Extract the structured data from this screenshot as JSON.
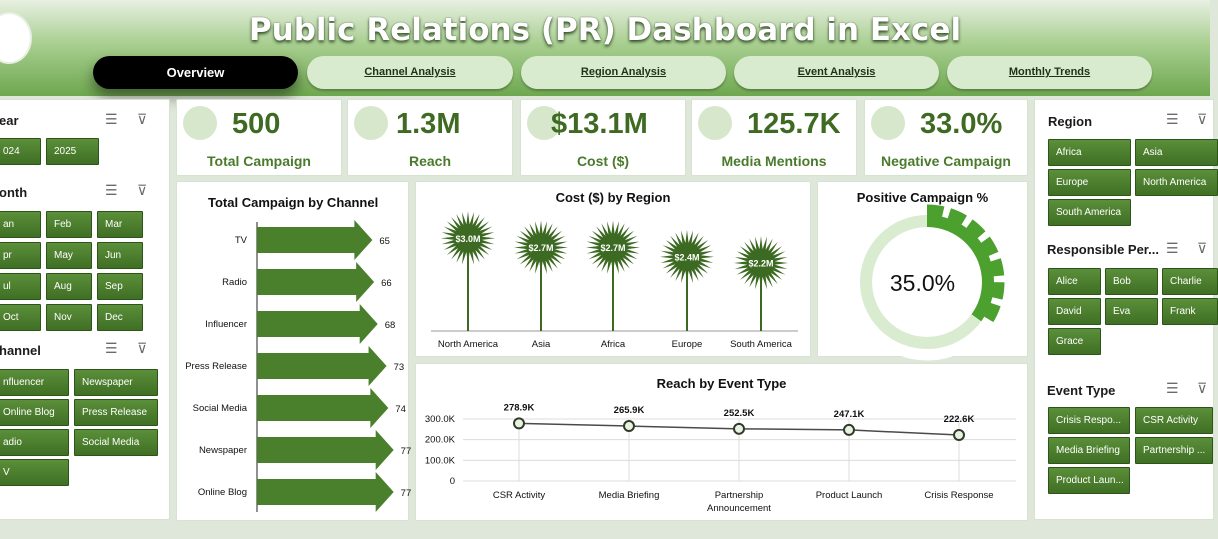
{
  "header": {
    "title": "Public Relations (PR) Dashboard in Excel"
  },
  "tabs": [
    "Overview",
    "Channel Analysis",
    "Region Analysis",
    "Event Analysis",
    "Monthly Trends"
  ],
  "kpis": [
    {
      "value": "500",
      "label": "Total Campaign",
      "icon": "target-icon"
    },
    {
      "value": "1.3M",
      "label": "Reach",
      "icon": "audience-icon"
    },
    {
      "value": "$13.1M",
      "label": "Cost ($)",
      "icon": "money-icon"
    },
    {
      "value": "125.7K",
      "label": "Media Mentions",
      "icon": "media-icon"
    },
    {
      "value": "33.0%",
      "label": "Negative Campaign",
      "icon": "thumbs-down-icon"
    }
  ],
  "left": {
    "year": {
      "title": "ear",
      "items": [
        "024",
        "2025"
      ]
    },
    "month": {
      "title": "onth",
      "items": [
        "an",
        "Feb",
        "Mar",
        "pr",
        "May",
        "Jun",
        "ul",
        "Aug",
        "Sep",
        "Oct",
        "Nov",
        "Dec"
      ]
    },
    "channel": {
      "title": "hannel",
      "items": [
        "nfluencer",
        "Newspaper",
        "Online Blog",
        "Press Release",
        "adio",
        "Social Media",
        "V"
      ]
    }
  },
  "right": {
    "region": {
      "title": "Region",
      "items": [
        "Africa",
        "Asia",
        "Europe",
        "North America",
        "South America"
      ]
    },
    "person": {
      "title": "Responsible Per...",
      "items": [
        "Alice",
        "Bob",
        "Charlie",
        "David",
        "Eva",
        "Frank",
        "Grace"
      ]
    },
    "event": {
      "title": "Event Type",
      "items": [
        "Crisis Respo...",
        "CSR Activity",
        "Media Briefing",
        "Partnership ...",
        "Product Laun..."
      ]
    }
  },
  "charts": {
    "channel": {
      "title": "Total Campaign by Channel"
    },
    "region": {
      "title": "Cost ($) by Region"
    },
    "positive": {
      "title": "Positive Campaign %",
      "value": "35.0%"
    },
    "event": {
      "title": "Reach by Event Type"
    }
  },
  "chart_data": [
    {
      "type": "bar",
      "title": "Total Campaign by Channel",
      "categories": [
        "TV",
        "Radio",
        "Influencer",
        "Press Release",
        "Social Media",
        "Newspaper",
        "Online Blog"
      ],
      "values": [
        65,
        66,
        68,
        73,
        74,
        77,
        77
      ],
      "color": "#4a7f2c"
    },
    {
      "type": "bar",
      "title": "Cost ($) by Region",
      "categories": [
        "North America",
        "Asia",
        "Africa",
        "Europe",
        "South America"
      ],
      "values": [
        3.0,
        2.7,
        2.7,
        2.4,
        2.2
      ],
      "data_labels": [
        "$3.0M",
        "$2.7M",
        "$2.7M",
        "$2.4M",
        "$2.2M"
      ],
      "color": "#3d6a22"
    },
    {
      "type": "pie",
      "title": "Positive Campaign %",
      "values": [
        35.0,
        65.0
      ],
      "label": "35.0%",
      "color": "#4ba02e"
    },
    {
      "type": "line",
      "title": "Reach by Event Type",
      "categories": [
        "CSR Activity",
        "Media Briefing",
        "Partnership Announcement",
        "Product Launch",
        "Crisis Response"
      ],
      "values": [
        278.9,
        265.9,
        252.5,
        247.1,
        222.6
      ],
      "data_labels": [
        "278.9K",
        "265.9K",
        "252.5K",
        "247.1K",
        "222.6K"
      ],
      "y_ticks": [
        "300.0K",
        "200.0K",
        "100.0K",
        "0"
      ],
      "ylim": [
        0,
        300
      ]
    }
  ]
}
